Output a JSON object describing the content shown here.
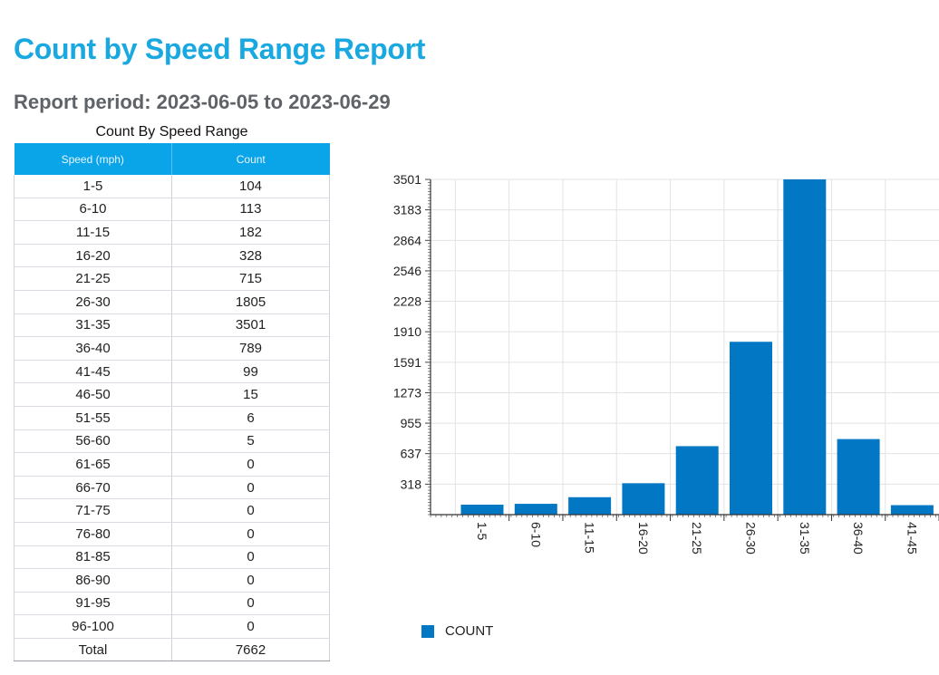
{
  "report": {
    "title": "Count by Speed Range Report",
    "period": "Report period: 2023-06-05 to 2023-06-29"
  },
  "table": {
    "caption": "Count By Speed Range",
    "headers": [
      "Speed (mph)",
      "Count"
    ],
    "rows": [
      [
        "1-5",
        "104"
      ],
      [
        "6-10",
        "113"
      ],
      [
        "11-15",
        "182"
      ],
      [
        "16-20",
        "328"
      ],
      [
        "21-25",
        "715"
      ],
      [
        "26-30",
        "1805"
      ],
      [
        "31-35",
        "3501"
      ],
      [
        "36-40",
        "789"
      ],
      [
        "41-45",
        "99"
      ],
      [
        "46-50",
        "15"
      ],
      [
        "51-55",
        "6"
      ],
      [
        "56-60",
        "5"
      ],
      [
        "61-65",
        "0"
      ],
      [
        "66-70",
        "0"
      ],
      [
        "71-75",
        "0"
      ],
      [
        "76-80",
        "0"
      ],
      [
        "81-85",
        "0"
      ],
      [
        "86-90",
        "0"
      ],
      [
        "91-95",
        "0"
      ],
      [
        "96-100",
        "0"
      ]
    ],
    "total": [
      "Total",
      "7662"
    ]
  },
  "colors": {
    "title": "#1aa8e0",
    "header_bg": "#0aa4e8",
    "bar": "#0278c4",
    "grid": "#e3e3e3"
  },
  "chart_data": {
    "type": "bar",
    "categories": [
      "1-5",
      "6-10",
      "11-15",
      "16-20",
      "21-25",
      "26-30",
      "31-35",
      "36-40",
      "41-45"
    ],
    "series": [
      {
        "name": "COUNT",
        "values": [
          104,
          113,
          182,
          328,
          715,
          1805,
          3501,
          789,
          99
        ]
      }
    ],
    "yticks": [
      "318",
      "637",
      "955",
      "1273",
      "1591",
      "1910",
      "2228",
      "2546",
      "2864",
      "3183",
      "3501"
    ],
    "ylim": [
      0,
      3501
    ],
    "grid": true,
    "legend": "bottom-left",
    "xlabel": "",
    "ylabel": ""
  }
}
